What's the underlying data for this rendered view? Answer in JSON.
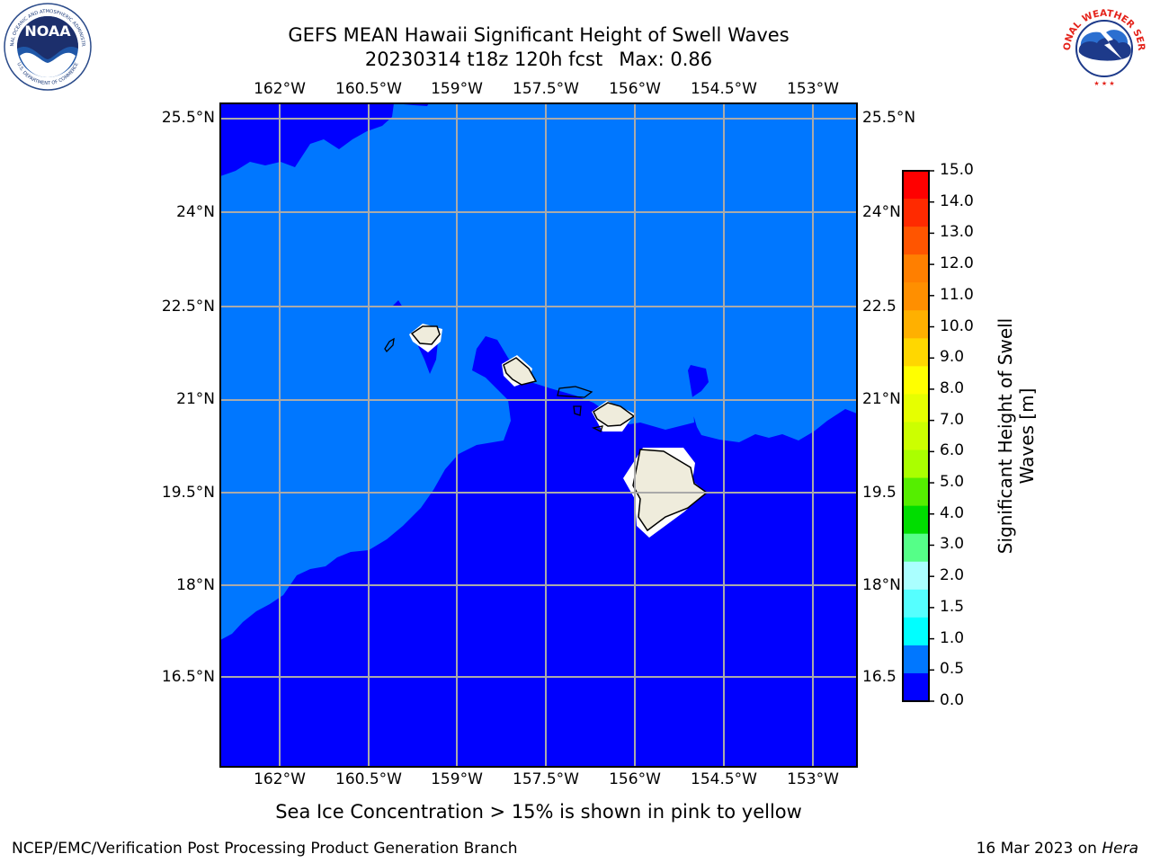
{
  "title_line1": "GEFS MEAN Hawaii Significant Height of Swell Waves",
  "title_date": "20230314 t18z 120h fcst",
  "title_max": "Max: 0.86",
  "lon_labels": [
    "162°W",
    "160.5°W",
    "159°W",
    "157.5°W",
    "156°W",
    "154.5°W",
    "153°W"
  ],
  "lat_labels_left": [
    "25.5°N",
    "24°N",
    "22.5°N",
    "21°N",
    "19.5°N",
    "18°N",
    "16.5°N"
  ],
  "lat_labels_right": [
    "25.5°N",
    "24°N",
    "22.5",
    "21°N",
    "19.5",
    "18°N",
    "16.5"
  ],
  "colorbar": {
    "title_line1": "Significant Height of Swell",
    "title_line2": "Waves [m]",
    "ticks": [
      "15.0",
      "14.0",
      "13.0",
      "12.0",
      "11.0",
      "10.0",
      "9.0",
      "8.0",
      "7.0",
      "6.0",
      "5.0",
      "4.0",
      "3.0",
      "2.0",
      "1.5",
      "1.0",
      "0.5",
      "0.0"
    ],
    "colors_top_to_bottom": [
      "#ff0000",
      "#ff2a00",
      "#ff5500",
      "#ff7f00",
      "#ff8f00",
      "#ffb000",
      "#ffd700",
      "#ffff00",
      "#e6ff00",
      "#ccff00",
      "#aaff00",
      "#55ee00",
      "#00dd00",
      "#55ff88",
      "#aaffff",
      "#55ffff",
      "#00ffff",
      "#0077ff",
      "#0000ff"
    ]
  },
  "map": {
    "level_0_0_to_0_5_color": "#0000ff",
    "level_0_5_to_1_0_color": "#0077ff",
    "land_color": "#efecdc",
    "gridline_color": "#aaaaaa"
  },
  "subcaption": "Sea Ice Concentration > 15% is shown in pink to yellow",
  "footer_left": "NCEP/EMC/Verification Post Processing Product Generation Branch",
  "footer_date": "16 Mar 2023 on",
  "footer_machine": "Hera",
  "logos": {
    "noaa_text": "NOAA",
    "noaa_ring_text": "NATIONAL OCEANIC AND ATMOSPHERIC ADMINISTRATION",
    "noaa_ring_text_bottom": "U.S. DEPARTMENT OF COMMERCE",
    "nws_ring_text": "NATIONAL WEATHER SERVICE"
  }
}
